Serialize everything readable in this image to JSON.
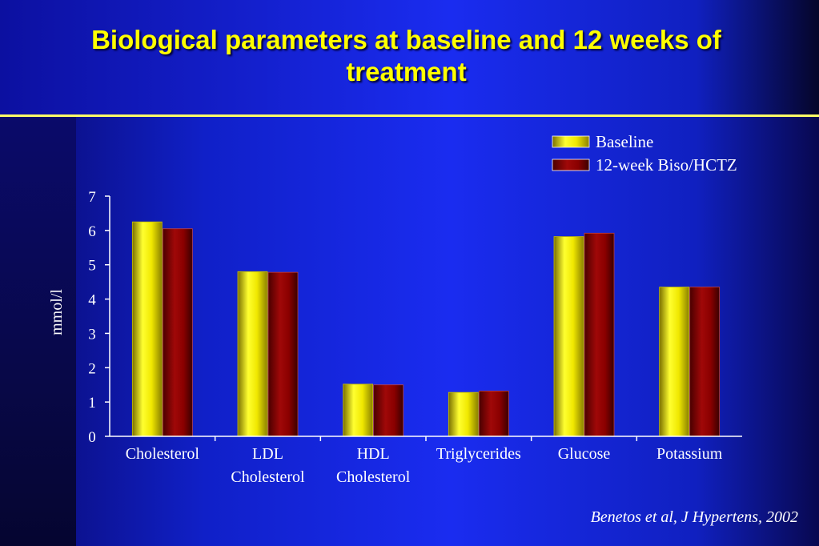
{
  "slide": {
    "title": "Biological parameters at baseline and 12 weeks of treatment",
    "source": "Benetos et al, J Hypertens, 2002"
  },
  "colors": {
    "baseline": "#e8e000",
    "treatment": "#8b0000",
    "title": "#ffff00",
    "rule": "#ffff66"
  },
  "chart_data": {
    "type": "bar",
    "categories": [
      [
        "Cholesterol"
      ],
      [
        "LDL",
        "Cholesterol"
      ],
      [
        "HDL",
        "Cholesterol"
      ],
      [
        "Triglycerides"
      ],
      [
        "Glucose"
      ],
      [
        "Potassium"
      ]
    ],
    "series": [
      {
        "name": "Baseline",
        "values": [
          6.25,
          4.8,
          1.52,
          1.28,
          5.82,
          4.35
        ],
        "color": "#e8e000"
      },
      {
        "name": "12-week Biso/HCTZ",
        "values": [
          6.05,
          4.78,
          1.5,
          1.32,
          5.92,
          4.35
        ],
        "color": "#8b0000"
      }
    ],
    "ylabel": "mmol/l",
    "xlabel": "",
    "ylim": [
      0,
      7
    ],
    "yticks": [
      0,
      1,
      2,
      3,
      4,
      5,
      6,
      7
    ],
    "grid": false,
    "legend": "top-right"
  }
}
